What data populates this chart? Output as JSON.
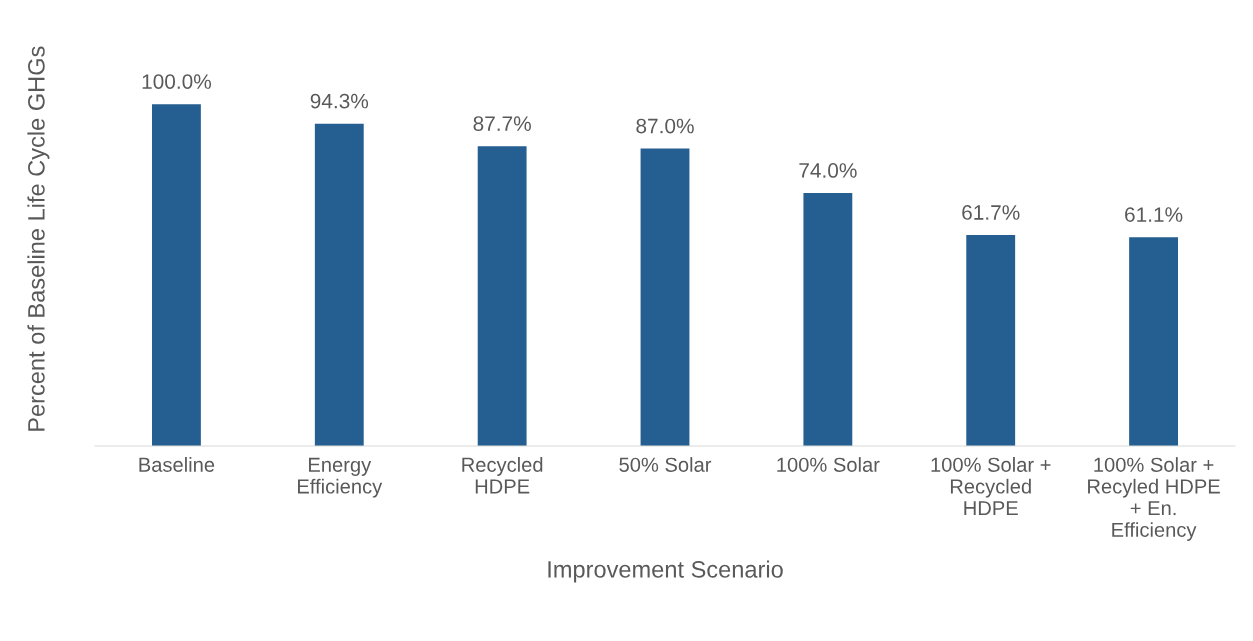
{
  "chart_data": {
    "type": "bar",
    "xlabel": "Improvement Scenario",
    "ylabel": "Percent of Baseline Life Cycle GHGs",
    "categories": [
      "Baseline",
      "Energy\nEfficiency",
      "Recycled\nHDPE",
      "50% Solar",
      "100% Solar",
      "100% Solar +\nRecycled\nHDPE",
      "100% Solar +\nRecyled HDPE\n+ En.\nEfficiency"
    ],
    "values": [
      100.0,
      94.3,
      87.7,
      87.0,
      74.0,
      61.7,
      61.1
    ],
    "value_labels": [
      "100.0%",
      "94.3%",
      "87.7%",
      "87.0%",
      "74.0%",
      "61.7%",
      "61.1%"
    ],
    "color": "#255e91",
    "tick_labels": "x",
    "grid": false,
    "legend": false
  }
}
